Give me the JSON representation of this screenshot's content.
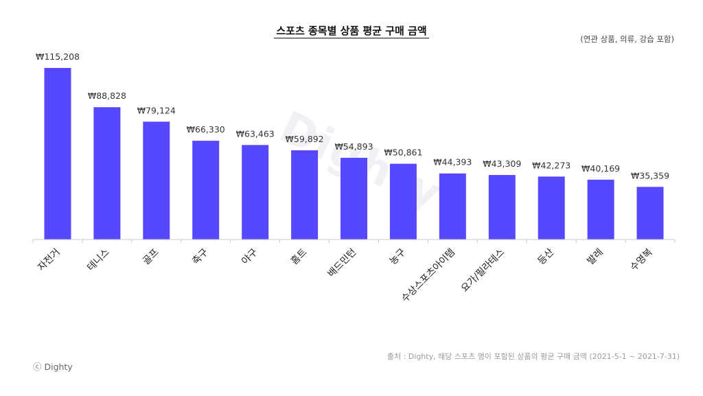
{
  "chart_data": {
    "type": "bar",
    "title": "스포츠 종목별 상품 평균 구매 금액",
    "subtitle": "(연관 상품, 의류, 강습 포함)",
    "categories": [
      "자전거",
      "테니스",
      "골프",
      "축구",
      "야구",
      "홈트",
      "배드민턴",
      "농구",
      "수상스포츠아이템",
      "요가/필라테스",
      "등산",
      "발레",
      "수영복"
    ],
    "values": [
      115208,
      88828,
      79124,
      66330,
      63463,
      59892,
      54893,
      50861,
      44393,
      43309,
      42273,
      40169,
      35359
    ],
    "labels": [
      "₩115,208",
      "₩88,828",
      "₩79,124",
      "₩66,330",
      "₩63,463",
      "₩59,892",
      "₩54,893",
      "₩50,861",
      "₩44,393",
      "₩43,309",
      "₩42,273",
      "₩40,169",
      "₩35,359"
    ],
    "ylim": [
      0,
      115208
    ],
    "xlabel": "",
    "ylabel": "",
    "bar_color": "#5548ff",
    "grid": false
  },
  "watermark": "Dighty",
  "footer": {
    "source": "출처 : Dighty, 해당 스포츠 명이 포함된 상품의 평균 구매 금액 (2021-5-1 ~ 2021-7-31)",
    "brand": "ⓒ Dighty"
  }
}
